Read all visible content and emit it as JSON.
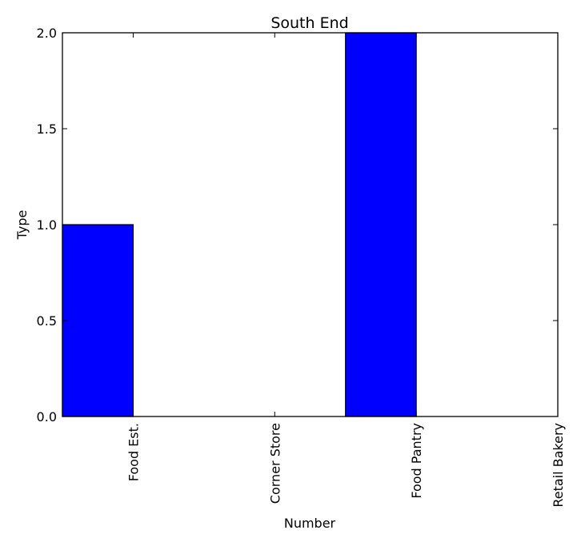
{
  "chart_data": {
    "type": "bar",
    "title": "South End",
    "xlabel": "Number",
    "ylabel": "Type",
    "categories": [
      "Food Est.",
      "Corner Store",
      "Food Pantry",
      "Retail Bakery"
    ],
    "values": [
      1,
      0,
      2,
      0
    ],
    "ylim": [
      0,
      2
    ],
    "yticks": [
      0.0,
      0.5,
      1.0,
      1.5,
      2.0
    ],
    "ytick_labels": [
      "0.0",
      "0.5",
      "1.0",
      "1.5",
      "2.0"
    ],
    "bar_color": "#0000ff",
    "bar_edge_color": "#000000",
    "grid": false,
    "legend": "none"
  }
}
